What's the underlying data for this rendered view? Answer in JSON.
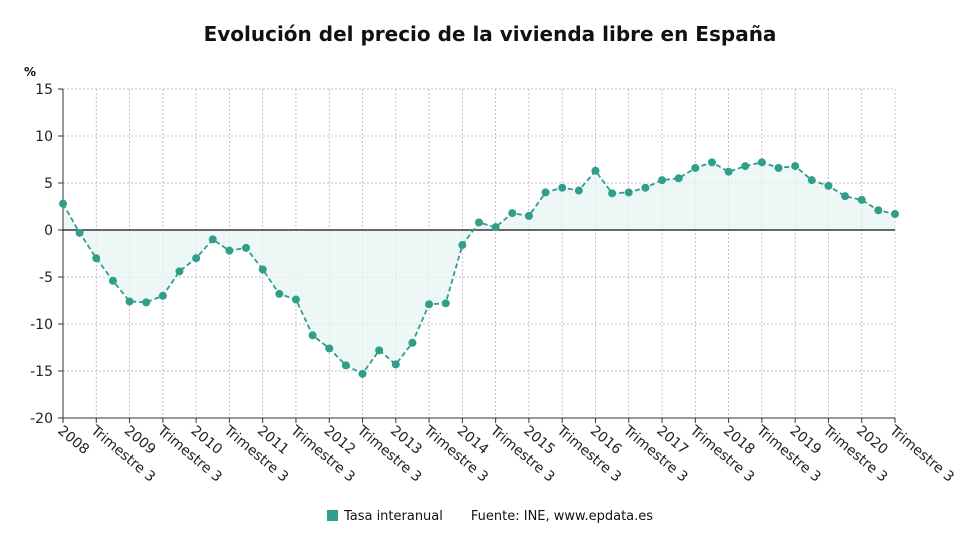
{
  "chart_data": {
    "type": "line",
    "title": "Evolución del precio de la vivienda libre en España",
    "ylabel": "%",
    "ylim": [
      -20,
      15
    ],
    "yticks": [
      15,
      10,
      5,
      0,
      -5,
      -10,
      -15,
      -20
    ],
    "grid": true,
    "legend_position": "bottom",
    "x_tick_labels": [
      "2008",
      "Trimestre 3",
      "2009",
      "Trimestre 3",
      "2010",
      "Trimestre 3",
      "2011",
      "Trimestre 3",
      "2012",
      "Trimestre 3",
      "2013",
      "Trimestre 3",
      "2014",
      "Trimestre 3",
      "2015",
      "Trimestre 3",
      "2016",
      "Trimestre 3",
      "2017",
      "Trimestre 3",
      "2018",
      "Trimestre 3",
      "2019",
      "Trimestre 3",
      "2020",
      "Trimestre 3"
    ],
    "series": [
      {
        "name": "Tasa interanual",
        "color": "#2f9e8a",
        "values": [
          2.8,
          -0.3,
          -3.0,
          -5.4,
          -7.6,
          -7.7,
          -7.0,
          -4.4,
          -3.0,
          -1.0,
          -2.2,
          -1.9,
          -4.2,
          -6.8,
          -7.4,
          -11.2,
          -12.6,
          -14.4,
          -15.3,
          -12.8,
          -14.3,
          -12.0,
          -7.9,
          -7.8,
          -1.6,
          0.8,
          0.3,
          1.8,
          1.5,
          4.0,
          4.5,
          4.2,
          6.3,
          3.9,
          4.0,
          4.5,
          5.3,
          5.5,
          6.6,
          7.2,
          6.2,
          6.8,
          7.2,
          6.6,
          6.8,
          5.3,
          4.7,
          3.6,
          3.2,
          2.1,
          1.7
        ]
      }
    ]
  },
  "source_text": "Fuente: INE, www.epdata.es"
}
